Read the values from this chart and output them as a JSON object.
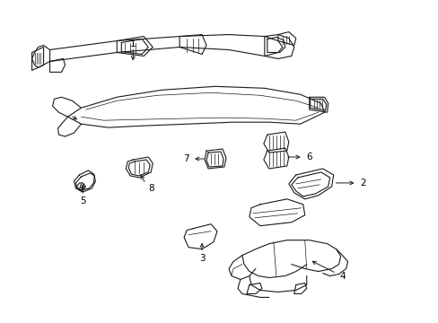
{
  "background_color": "#ffffff",
  "line_color": "#1a1a1a",
  "label_color": "#000000",
  "fig_width": 4.89,
  "fig_height": 3.6,
  "dpi": 100,
  "image_b64": ""
}
